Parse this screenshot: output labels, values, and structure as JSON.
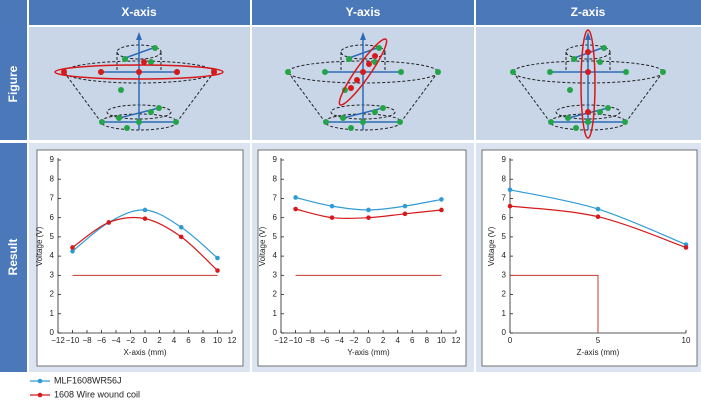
{
  "header": {
    "columns": [
      "X-axis",
      "Y-axis",
      "Z-axis"
    ],
    "rows": [
      "Figure",
      "Result"
    ]
  },
  "chart_data": [
    {
      "type": "line",
      "x_label": "X-axis (mm)",
      "y_label": "Voltage (V)",
      "x": [
        -10,
        -5,
        0,
        5,
        10
      ],
      "series": [
        {
          "name": "MLF1608WR56J",
          "color": "#2e9bd6",
          "values": [
            4.25,
            5.75,
            6.4,
            5.5,
            3.9
          ]
        },
        {
          "name": "1608 Wire wound coil",
          "color": "#d7191c",
          "values": [
            4.45,
            5.75,
            5.95,
            5.0,
            3.25
          ]
        }
      ],
      "xlim": [
        -12,
        12
      ],
      "xticks": [
        {
          "value": -12,
          "label": "−12"
        },
        {
          "value": -10,
          "label": "−10"
        },
        {
          "value": -8,
          "label": "−8"
        },
        {
          "value": -6,
          "label": "−6"
        },
        {
          "value": -4,
          "label": "−4"
        },
        {
          "value": -2,
          "label": "−2"
        },
        0,
        2,
        4,
        6,
        8,
        10,
        12
      ],
      "ylim": [
        0,
        9
      ],
      "yticks": [
        0,
        1,
        2,
        3,
        4,
        5,
        6,
        7,
        8,
        9
      ],
      "limit_line": {
        "x": [
          -10,
          10
        ],
        "y": [
          3,
          3
        ],
        "color": "#c0392b"
      }
    },
    {
      "type": "line",
      "x_label": "Y-axis (mm)",
      "y_label": "Voltage (V)",
      "x": [
        -10,
        -5,
        0,
        5,
        10
      ],
      "series": [
        {
          "color": "#2e9bd6",
          "values": [
            7.05,
            6.6,
            6.4,
            6.6,
            6.95
          ]
        },
        {
          "color": "#d7191c",
          "values": [
            6.45,
            6.0,
            6.0,
            6.2,
            6.4
          ]
        }
      ],
      "xlim": [
        -12,
        12
      ],
      "xticks": [
        {
          "value": -12,
          "label": "−12"
        },
        {
          "value": -10,
          "label": "−10"
        },
        {
          "value": -8,
          "label": "−8"
        },
        {
          "value": -6,
          "label": "−6"
        },
        {
          "value": -4,
          "label": "−4"
        },
        {
          "value": -2,
          "label": "−2"
        },
        0,
        2,
        4,
        6,
        8,
        10,
        12
      ],
      "ylim": [
        0,
        9
      ],
      "yticks": [
        0,
        1,
        2,
        3,
        4,
        5,
        6,
        7,
        8,
        9
      ],
      "limit_line": {
        "x": [
          -10,
          10
        ],
        "y": [
          3,
          3
        ],
        "color": "#c0392b"
      }
    },
    {
      "type": "line",
      "x_label": "Z-axis (mm)",
      "y_label": "Voltage (V)",
      "x": [
        0,
        5,
        10
      ],
      "series": [
        {
          "color": "#2e9bd6",
          "values": [
            7.45,
            6.45,
            4.6
          ]
        },
        {
          "color": "#d7191c",
          "values": [
            6.6,
            6.05,
            4.45
          ]
        }
      ],
      "xlim": [
        0,
        10
      ],
      "xticks": [
        0,
        5,
        10
      ],
      "ylim": [
        0,
        9
      ],
      "yticks": [
        0,
        1,
        2,
        3,
        4,
        5,
        6,
        7,
        8,
        9
      ],
      "limit_line": {
        "x": [
          0,
          5,
          5
        ],
        "y": [
          3,
          3,
          0
        ],
        "color": "#c0392b"
      }
    }
  ]
}
